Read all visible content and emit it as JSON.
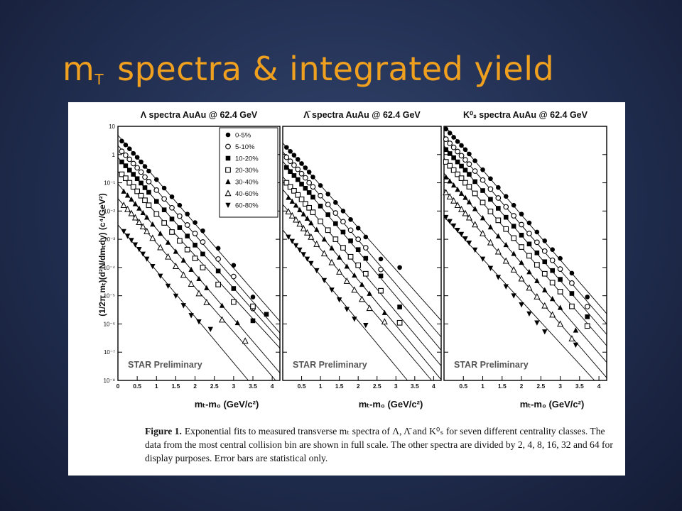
{
  "slide": {
    "title_main": "m",
    "title_sub": "T",
    "title_rest": "spectra & integrated yield"
  },
  "figure": {
    "ylabel": "(1/2π mₜ)(d²N/dmₜdy) (c⁴/GeV²)",
    "xlabel": "mₜ-m₀ (GeV/c²)",
    "watermark": "STAR Preliminary",
    "caption_label": "Figure 1.",
    "caption_text": "Exponential fits to measured transverse mₜ spectra of Λ, Λ̄ and K⁰ₛ for seven different centrality classes. The data from the most central collision bin are shown in full scale. The other spectra are divided by 2, 4, 8, 16, 32 and 64 for display purposes. Error bars are statistical only."
  },
  "chart_data": [
    {
      "type": "scatter",
      "title": "Λ spectra AuAu @ 62.4 GeV",
      "xlabel": "mₜ-m₀ (GeV/c²)",
      "ylabel": "(1/2π mₜ)(d²N/dmₜdy) (c⁴/GeV²)",
      "yscale": "log",
      "xlim": [
        0,
        4.2
      ],
      "ylim": [
        1e-08,
        10
      ],
      "xticks": [
        "0",
        "0.5",
        "1",
        "1.5",
        "2",
        "2.5",
        "3",
        "3.5",
        "4"
      ],
      "yticks": [
        "10⁻⁸",
        "10⁻⁷",
        "10⁻⁶",
        "10⁻⁵",
        "10⁻⁴",
        "10⁻³",
        "10⁻²",
        "10⁻¹",
        "1",
        "10"
      ],
      "legend_position": "top-right",
      "series": [
        {
          "name": "0-5%",
          "marker": "filled-circle",
          "x": [
            0.1,
            0.2,
            0.3,
            0.4,
            0.5,
            0.6,
            0.7,
            0.8,
            1.0,
            1.2,
            1.4,
            1.6,
            1.8,
            2.0,
            2.2,
            2.6,
            3.0,
            3.5
          ],
          "y": [
            3.0,
            2.2,
            1.6,
            1.1,
            0.8,
            0.55,
            0.38,
            0.26,
            0.13,
            0.065,
            0.032,
            0.016,
            0.0078,
            0.0039,
            0.002,
            0.00048,
            0.00012,
            9e-06
          ]
        },
        {
          "name": "5-10%",
          "marker": "open-circle",
          "x": [
            0.1,
            0.2,
            0.3,
            0.4,
            0.5,
            0.6,
            0.7,
            0.8,
            1.0,
            1.2,
            1.4,
            1.6,
            1.8,
            2.0,
            2.2,
            2.6,
            3.0,
            3.5
          ],
          "y": [
            1.3,
            0.95,
            0.68,
            0.48,
            0.34,
            0.24,
            0.16,
            0.11,
            0.055,
            0.027,
            0.013,
            0.0066,
            0.0032,
            0.0016,
            0.0008,
            0.0002,
            4.8e-05,
            3.5e-06
          ]
        },
        {
          "name": "10-20%",
          "marker": "filled-square",
          "x": [
            0.1,
            0.2,
            0.3,
            0.4,
            0.5,
            0.6,
            0.7,
            0.8,
            1.0,
            1.2,
            1.4,
            1.6,
            1.8,
            2.0,
            2.2,
            2.6,
            3.0,
            3.5,
            3.85
          ],
          "y": [
            0.55,
            0.4,
            0.28,
            0.2,
            0.14,
            0.098,
            0.067,
            0.046,
            0.022,
            0.011,
            0.0052,
            0.0026,
            0.0013,
            0.00062,
            0.0003,
            7.5e-05,
            1.8e-05,
            1.3e-06,
            2.2e-06
          ]
        },
        {
          "name": "20-30%",
          "marker": "open-square",
          "x": [
            0.1,
            0.2,
            0.3,
            0.4,
            0.5,
            0.6,
            0.7,
            0.8,
            1.0,
            1.2,
            1.4,
            1.6,
            1.8,
            2.0,
            2.2,
            2.6,
            3.0,
            3.5
          ],
          "y": [
            0.2,
            0.145,
            0.1,
            0.072,
            0.05,
            0.035,
            0.024,
            0.016,
            0.0078,
            0.0038,
            0.0018,
            0.00088,
            0.00043,
            0.00021,
            0.0001,
            2.5e-05,
            6e-06,
            4.2e-06
          ]
        },
        {
          "name": "30-40%",
          "marker": "filled-triangle-up",
          "x": [
            0.15,
            0.25,
            0.35,
            0.45,
            0.55,
            0.65,
            0.75,
            0.9,
            1.1,
            1.3,
            1.5,
            1.7,
            1.9,
            2.1,
            2.3,
            2.7,
            3.1
          ],
          "y": [
            0.05,
            0.036,
            0.026,
            0.018,
            0.0125,
            0.0087,
            0.006,
            0.0034,
            0.0016,
            0.00078,
            0.00037,
            0.00018,
            8.5e-05,
            4e-05,
            1.9e-05,
            4.5e-06,
            1.1e-06
          ]
        },
        {
          "name": "40-60%",
          "marker": "open-triangle-up",
          "x": [
            0.15,
            0.25,
            0.35,
            0.45,
            0.55,
            0.65,
            0.75,
            0.9,
            1.1,
            1.3,
            1.5,
            1.7,
            1.9,
            2.1,
            2.3,
            2.7,
            3.3
          ],
          "y": [
            0.016,
            0.0115,
            0.0082,
            0.0058,
            0.004,
            0.0028,
            0.0019,
            0.0011,
            0.00051,
            0.00024,
            0.00011,
            5.4e-05,
            2.6e-05,
            1.2e-05,
            5.8e-06,
            1.4e-06,
            2.5e-07
          ]
        },
        {
          "name": "60-80%",
          "marker": "filled-triangle-down",
          "x": [
            0.15,
            0.25,
            0.35,
            0.45,
            0.55,
            0.65,
            0.75,
            0.9,
            1.1,
            1.3,
            1.5,
            1.7,
            1.9,
            2.1,
            2.4
          ],
          "y": [
            0.0019,
            0.0013,
            0.00092,
            0.00064,
            0.00044,
            0.0003,
            0.0002,
            0.00011,
            5e-05,
            2.2e-05,
            9.8e-06,
            4.5e-06,
            2e-06,
            1.2e-06,
            6.5e-07
          ]
        }
      ]
    },
    {
      "type": "scatter",
      "title": "Λ̄ spectra AuAu @ 62.4 GeV",
      "xlabel": "mₜ-m₀ (GeV/c²)",
      "yscale": "log",
      "xlim": [
        0,
        4.2
      ],
      "ylim": [
        1e-08,
        10
      ],
      "xticks": [
        "0.5",
        "1",
        "1.5",
        "2",
        "2.5",
        "3",
        "3.5",
        "4"
      ],
      "series": [
        {
          "name": "0-5%",
          "marker": "filled-circle",
          "x": [
            0.1,
            0.2,
            0.3,
            0.4,
            0.5,
            0.6,
            0.7,
            0.8,
            1.0,
            1.2,
            1.4,
            1.6,
            1.8,
            2.0,
            2.2,
            2.6,
            3.1
          ],
          "y": [
            1.8,
            1.3,
            0.95,
            0.68,
            0.48,
            0.34,
            0.24,
            0.16,
            0.08,
            0.04,
            0.02,
            0.01,
            0.005,
            0.0025,
            0.0012,
            0.0002,
            0.0001
          ]
        },
        {
          "name": "5-10%",
          "marker": "open-circle",
          "x": [
            0.1,
            0.2,
            0.3,
            0.4,
            0.5,
            0.6,
            0.7,
            0.8,
            1.0,
            1.2,
            1.4,
            1.6,
            1.8,
            2.0,
            2.2,
            2.6
          ],
          "y": [
            0.8,
            0.58,
            0.42,
            0.3,
            0.21,
            0.15,
            0.1,
            0.072,
            0.035,
            0.017,
            0.0085,
            0.0042,
            0.0021,
            0.001,
            0.0005,
            8.5e-05
          ]
        },
        {
          "name": "10-20%",
          "marker": "filled-square",
          "x": [
            0.1,
            0.2,
            0.3,
            0.4,
            0.5,
            0.6,
            0.7,
            0.8,
            1.0,
            1.2,
            1.4,
            1.6,
            1.8,
            2.0,
            2.2,
            2.6,
            3.1
          ],
          "y": [
            0.35,
            0.25,
            0.18,
            0.13,
            0.09,
            0.064,
            0.045,
            0.031,
            0.015,
            0.0074,
            0.0036,
            0.0018,
            0.00088,
            0.00043,
            0.00021,
            5e-05,
            4e-06
          ]
        },
        {
          "name": "20-30%",
          "marker": "open-square",
          "x": [
            0.1,
            0.2,
            0.3,
            0.4,
            0.5,
            0.6,
            0.7,
            0.8,
            1.0,
            1.2,
            1.4,
            1.6,
            1.8,
            2.0,
            2.2,
            2.6,
            3.1
          ],
          "y": [
            0.1,
            0.072,
            0.052,
            0.037,
            0.026,
            0.018,
            0.013,
            0.009,
            0.0043,
            0.0021,
            0.001,
            0.0005,
            0.00024,
            0.00012,
            6e-05,
            1.5e-05,
            1.1e-06
          ]
        },
        {
          "name": "30-40%",
          "marker": "filled-triangle-up",
          "x": [
            0.15,
            0.25,
            0.35,
            0.45,
            0.55,
            0.65,
            0.75,
            0.9,
            1.1,
            1.3,
            1.5,
            1.7,
            1.9,
            2.1,
            2.3,
            2.7
          ],
          "y": [
            0.03,
            0.022,
            0.016,
            0.011,
            0.0078,
            0.0055,
            0.0038,
            0.0022,
            0.001,
            0.00049,
            0.00023,
            0.00011,
            5.3e-05,
            2.5e-05,
            1.2e-05,
            2.5e-06
          ]
        },
        {
          "name": "40-60%",
          "marker": "open-triangle-up",
          "x": [
            0.15,
            0.25,
            0.35,
            0.45,
            0.55,
            0.65,
            0.75,
            0.9,
            1.1,
            1.3,
            1.5,
            1.7,
            1.9,
            2.1,
            2.3,
            2.7
          ],
          "y": [
            0.0095,
            0.0068,
            0.0049,
            0.0035,
            0.0024,
            0.0017,
            0.0012,
            0.00067,
            0.00031,
            0.00015,
            7e-05,
            3.3e-05,
            1.6e-05,
            7.5e-06,
            3.6e-06,
            1.2e-06
          ]
        },
        {
          "name": "60-80%",
          "marker": "filled-triangle-down",
          "x": [
            0.15,
            0.25,
            0.35,
            0.45,
            0.55,
            0.65,
            0.75,
            0.9,
            1.1,
            1.3,
            1.5,
            1.7,
            1.9,
            2.2
          ],
          "y": [
            0.0012,
            0.00085,
            0.0006,
            0.00042,
            0.00029,
            0.0002,
            0.00014,
            7.8e-05,
            3.5e-05,
            1.6e-05,
            7.2e-06,
            3.3e-06,
            1.5e-06,
            9e-07
          ]
        }
      ]
    },
    {
      "type": "scatter",
      "title": "K⁰ₛ spectra AuAu @ 62.4 GeV",
      "xlabel": "mₜ-m₀ (GeV/c²)",
      "yscale": "log",
      "xlim": [
        0,
        4.2
      ],
      "ylim": [
        1e-08,
        10
      ],
      "xticks": [
        "0.5",
        "1",
        "1.5",
        "2",
        "2.5",
        "3",
        "3.5",
        "4"
      ],
      "series": [
        {
          "name": "0-5%",
          "marker": "filled-circle",
          "x": [
            0.05,
            0.15,
            0.25,
            0.35,
            0.45,
            0.55,
            0.65,
            0.8,
            1.0,
            1.2,
            1.4,
            1.6,
            1.8,
            2.0,
            2.2,
            2.4,
            2.6,
            2.8,
            3.0,
            3.3,
            3.7
          ],
          "y": [
            8,
            5.8,
            4.1,
            2.9,
            2.1,
            1.5,
            1.05,
            0.6,
            0.29,
            0.14,
            0.068,
            0.033,
            0.016,
            0.0078,
            0.0038,
            0.0018,
            0.00088,
            0.00043,
            0.00021,
            6.3e-05,
            9e-06
          ]
        },
        {
          "name": "5-10%",
          "marker": "open-circle",
          "x": [
            0.05,
            0.15,
            0.25,
            0.35,
            0.45,
            0.55,
            0.65,
            0.8,
            1.0,
            1.2,
            1.4,
            1.6,
            1.8,
            2.0,
            2.2,
            2.4,
            2.6,
            2.8,
            3.0,
            3.3,
            3.7
          ],
          "y": [
            3.5,
            2.5,
            1.8,
            1.28,
            0.91,
            0.65,
            0.46,
            0.26,
            0.125,
            0.06,
            0.029,
            0.014,
            0.0068,
            0.0033,
            0.0016,
            0.00078,
            0.00038,
            0.00018,
            8.8e-05,
            2.8e-05,
            4.1e-06
          ]
        },
        {
          "name": "10-20%",
          "marker": "filled-square",
          "x": [
            0.05,
            0.15,
            0.25,
            0.35,
            0.45,
            0.55,
            0.65,
            0.8,
            1.0,
            1.2,
            1.4,
            1.6,
            1.8,
            2.0,
            2.2,
            2.4,
            2.6,
            2.8,
            3.0,
            3.3,
            3.7
          ],
          "y": [
            1.5,
            1.08,
            0.77,
            0.55,
            0.39,
            0.28,
            0.2,
            0.11,
            0.053,
            0.026,
            0.0125,
            0.006,
            0.0029,
            0.0014,
            0.00068,
            0.00033,
            0.00016,
            7.8e-05,
            3.8e-05,
            1.2e-05,
            1.8e-06
          ]
        },
        {
          "name": "20-30%",
          "marker": "open-square",
          "x": [
            0.05,
            0.15,
            0.25,
            0.35,
            0.45,
            0.55,
            0.65,
            0.8,
            1.0,
            1.2,
            1.4,
            1.6,
            1.8,
            2.0,
            2.2,
            2.4,
            2.6,
            2.8,
            3.0,
            3.3,
            3.7
          ],
          "y": [
            0.55,
            0.4,
            0.28,
            0.2,
            0.145,
            0.1,
            0.073,
            0.042,
            0.02,
            0.0097,
            0.0047,
            0.0023,
            0.0011,
            0.00053,
            0.00026,
            0.000125,
            6e-05,
            2.9e-05,
            1.4e-05,
            4.2e-06,
            8.5e-07
          ]
        },
        {
          "name": "30-40%",
          "marker": "filled-triangle-up",
          "x": [
            0.05,
            0.15,
            0.25,
            0.35,
            0.45,
            0.55,
            0.65,
            0.8,
            1.0,
            1.2,
            1.4,
            1.6,
            1.8,
            2.0,
            2.2,
            2.4,
            2.6,
            2.8,
            3.0,
            3.4
          ],
          "y": [
            0.16,
            0.115,
            0.082,
            0.058,
            0.042,
            0.03,
            0.021,
            0.012,
            0.0057,
            0.0027,
            0.0013,
            0.00064,
            0.00031,
            0.00015,
            7e-05,
            3.4e-05,
            1.6e-05,
            7.8e-06,
            3.8e-06,
            6e-07
          ]
        },
        {
          "name": "40-60%",
          "marker": "open-triangle-up",
          "x": [
            0.05,
            0.15,
            0.25,
            0.35,
            0.45,
            0.55,
            0.65,
            0.8,
            1.0,
            1.2,
            1.4,
            1.6,
            1.8,
            2.0,
            2.2,
            2.4,
            2.6,
            2.8,
            3.0,
            3.3
          ],
          "y": [
            0.045,
            0.032,
            0.023,
            0.016,
            0.0115,
            0.0082,
            0.0058,
            0.0033,
            0.0016,
            0.00076,
            0.00036,
            0.00017,
            8.3e-05,
            4e-05,
            1.9e-05,
            9.2e-06,
            4.4e-06,
            2.1e-06,
            1e-06,
            3e-07
          ]
        },
        {
          "name": "60-80%",
          "marker": "filled-triangle-down",
          "x": [
            0.05,
            0.15,
            0.25,
            0.35,
            0.45,
            0.55,
            0.65,
            0.8,
            1.0,
            1.2,
            1.4,
            1.6,
            1.8,
            2.0,
            2.2,
            2.4,
            2.6,
            3.4
          ],
          "y": [
            0.006,
            0.0043,
            0.003,
            0.0021,
            0.0015,
            0.00105,
            0.00074,
            0.00042,
            0.0002,
            9.4e-05,
            4.5e-05,
            2.1e-05,
            1e-05,
            4.8e-06,
            2.3e-06,
            1.1e-06,
            5.3e-07,
            1.8e-07
          ]
        }
      ]
    }
  ]
}
